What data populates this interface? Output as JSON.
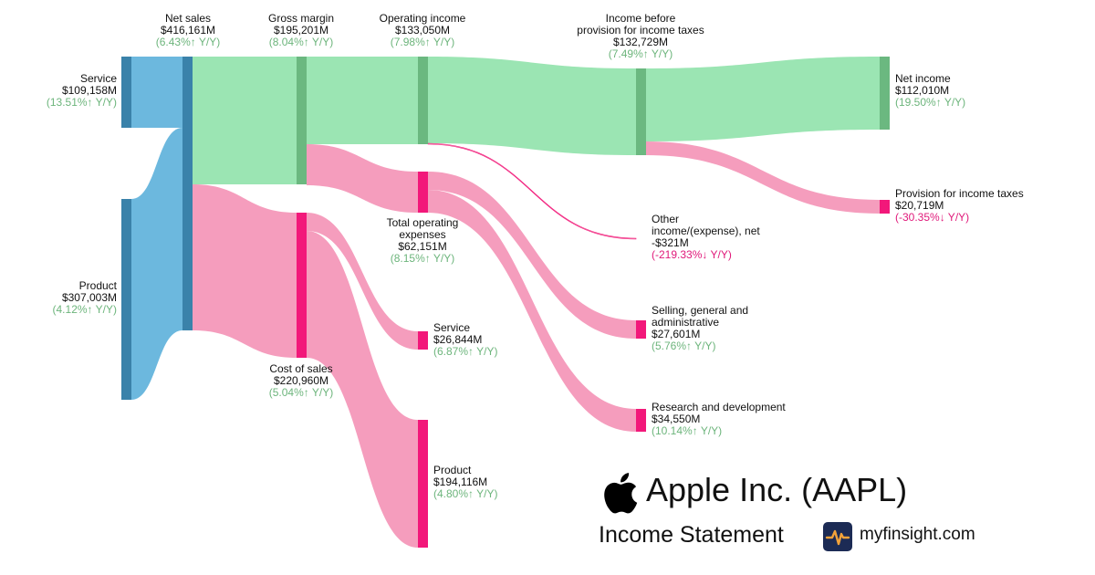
{
  "company": {
    "title": "Apple Inc. (AAPL)",
    "subtitle": "Income Statement",
    "site": "myfinsight.com"
  },
  "icons": {
    "logo": "apple-logo-icon",
    "site": "myfinsight-logo-icon"
  },
  "colors": {
    "revenue_node": "#3a82aa",
    "revenue_link": "#6cb8de",
    "profit_node": "#6bb880",
    "profit_link": "#9be5b3",
    "expense_node": "#f2187a",
    "expense_link": "#f59dbd",
    "up": "#6db57c",
    "down": "#e0197a"
  },
  "chart_data": {
    "type": "sankey",
    "unit": "$M",
    "nodes": [
      {
        "id": "service_rev",
        "name": "Service",
        "value": "$109,158M",
        "change": "(13.51%↑ Y/Y)",
        "trend": "up",
        "amount": 109158
      },
      {
        "id": "product_rev",
        "name": "Product",
        "value": "$307,003M",
        "change": "(4.12%↑ Y/Y)",
        "trend": "up",
        "amount": 307003
      },
      {
        "id": "net_sales",
        "name": "Net sales",
        "value": "$416,161M",
        "change": "(6.43%↑ Y/Y)",
        "trend": "up",
        "amount": 416161
      },
      {
        "id": "gross_margin",
        "name": "Gross margin",
        "value": "$195,201M",
        "change": "(8.04%↑ Y/Y)",
        "trend": "up",
        "amount": 195201
      },
      {
        "id": "cost_of_sales",
        "name": "Cost of sales",
        "value": "$220,960M",
        "change": "(5.04%↑ Y/Y)",
        "trend": "up",
        "amount": 220960
      },
      {
        "id": "operating_income",
        "name": "Operating income",
        "value": "$133,050M",
        "change": "(7.98%↑ Y/Y)",
        "trend": "up",
        "amount": 133050
      },
      {
        "id": "total_opex",
        "name": "Total operating expenses",
        "value": "$62,151M",
        "change": "(8.15%↑ Y/Y)",
        "trend": "up",
        "amount": 62151
      },
      {
        "id": "service_cost",
        "name": "Service",
        "value": "$26,844M",
        "change": "(6.87%↑ Y/Y)",
        "trend": "up",
        "amount": 26844
      },
      {
        "id": "product_cost",
        "name": "Product",
        "value": "$194,116M",
        "change": "(4.80%↑ Y/Y)",
        "trend": "up",
        "amount": 194116
      },
      {
        "id": "income_before_tax",
        "name": "Income before provision for income taxes",
        "value": "$132,729M",
        "change": "(7.49%↑ Y/Y)",
        "trend": "up",
        "amount": 132729
      },
      {
        "id": "other_income",
        "name": "Other income/(expense), net",
        "value": "-$321M",
        "change": "(-219.33%↓ Y/Y)",
        "trend": "down",
        "amount": -321
      },
      {
        "id": "sga",
        "name": "Selling, general and administrative",
        "value": "$27,601M",
        "change": "(5.76%↑ Y/Y)",
        "trend": "up",
        "amount": 27601
      },
      {
        "id": "rnd",
        "name": "Research and development",
        "value": "$34,550M",
        "change": "(10.14%↑ Y/Y)",
        "trend": "up",
        "amount": 34550
      },
      {
        "id": "net_income",
        "name": "Net income",
        "value": "$112,010M",
        "change": "(19.50%↑ Y/Y)",
        "trend": "up",
        "amount": 112010
      },
      {
        "id": "tax",
        "name": "Provision for income taxes",
        "value": "$20,719M",
        "change": "(-30.35%↓ Y/Y)",
        "trend": "down",
        "amount": 20719
      }
    ],
    "links": [
      {
        "source": "service_rev",
        "target": "net_sales",
        "value": 109158
      },
      {
        "source": "product_rev",
        "target": "net_sales",
        "value": 307003
      },
      {
        "source": "net_sales",
        "target": "gross_margin",
        "value": 195201
      },
      {
        "source": "net_sales",
        "target": "cost_of_sales",
        "value": 220960
      },
      {
        "source": "gross_margin",
        "target": "operating_income",
        "value": 133050
      },
      {
        "source": "gross_margin",
        "target": "total_opex",
        "value": 62151
      },
      {
        "source": "cost_of_sales",
        "target": "service_cost",
        "value": 26844
      },
      {
        "source": "cost_of_sales",
        "target": "product_cost",
        "value": 194116
      },
      {
        "source": "operating_income",
        "target": "income_before_tax",
        "value": 132729
      },
      {
        "source": "operating_income",
        "target": "other_income",
        "value": 321
      },
      {
        "source": "total_opex",
        "target": "sga",
        "value": 27601
      },
      {
        "source": "total_opex",
        "target": "rnd",
        "value": 34550
      },
      {
        "source": "income_before_tax",
        "target": "net_income",
        "value": 112010
      },
      {
        "source": "income_before_tax",
        "target": "tax",
        "value": 20719
      }
    ]
  }
}
